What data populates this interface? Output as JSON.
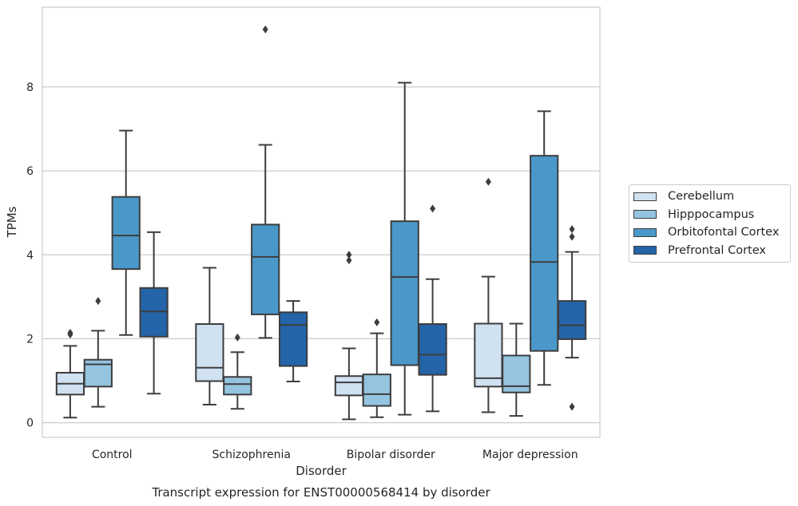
{
  "chart_data": {
    "type": "box",
    "title": "Transcript expression for ENST00000568414 by disorder",
    "xlabel": "Disorder",
    "ylabel": "TPMs",
    "ylim": [
      -0.35,
      9.9
    ],
    "yticks": [
      0,
      2,
      4,
      6,
      8
    ],
    "categories": [
      "Control",
      "Schizophrenia",
      "Bipolar disorder",
      "Major depression"
    ],
    "grid": "horizontal",
    "legend_position": "right",
    "series": [
      {
        "name": "Cerebellum",
        "color": "#d0e1f2",
        "boxes": [
          {
            "whislo": 0.12,
            "q1": 0.67,
            "med": 0.93,
            "q3": 1.19,
            "whishi": 1.83,
            "fliers": [
              2.1,
              2.14
            ]
          },
          {
            "whislo": 0.43,
            "q1": 0.99,
            "med": 1.31,
            "q3": 2.35,
            "whishi": 3.69,
            "fliers": []
          },
          {
            "whislo": 0.08,
            "q1": 0.65,
            "med": 0.96,
            "q3": 1.11,
            "whishi": 1.77,
            "fliers": [
              3.87,
              4.0
            ]
          },
          {
            "whislo": 0.25,
            "q1": 0.86,
            "med": 1.06,
            "q3": 2.36,
            "whishi": 3.48,
            "fliers": [
              5.74
            ]
          }
        ]
      },
      {
        "name": "Hipppocampus",
        "color": "#94c4df",
        "boxes": [
          {
            "whislo": 0.38,
            "q1": 0.86,
            "med": 1.39,
            "q3": 1.5,
            "whishi": 2.19,
            "fliers": [
              2.9
            ]
          },
          {
            "whislo": 0.33,
            "q1": 0.67,
            "med": 0.92,
            "q3": 1.09,
            "whishi": 1.68,
            "fliers": [
              2.03
            ]
          },
          {
            "whislo": 0.13,
            "q1": 0.4,
            "med": 0.68,
            "q3": 1.15,
            "whishi": 2.13,
            "fliers": [
              2.39
            ]
          },
          {
            "whislo": 0.16,
            "q1": 0.72,
            "med": 0.87,
            "q3": 1.6,
            "whishi": 2.36,
            "fliers": []
          }
        ]
      },
      {
        "name": "Orbitofontal Cortex",
        "color": "#4a98c9",
        "boxes": [
          {
            "whislo": 2.09,
            "q1": 3.66,
            "med": 4.46,
            "q3": 5.38,
            "whishi": 6.96,
            "fliers": []
          },
          {
            "whislo": 2.02,
            "q1": 2.58,
            "med": 3.95,
            "q3": 4.72,
            "whishi": 6.62,
            "fliers": [
              9.37
            ]
          },
          {
            "whislo": 0.19,
            "q1": 1.37,
            "med": 3.47,
            "q3": 4.8,
            "whishi": 8.1,
            "fliers": []
          },
          {
            "whislo": 0.9,
            "q1": 1.71,
            "med": 3.83,
            "q3": 6.36,
            "whishi": 7.42,
            "fliers": []
          }
        ]
      },
      {
        "name": "Prefrontal Cortex",
        "color": "#2464a8",
        "boxes": [
          {
            "whislo": 0.69,
            "q1": 2.05,
            "med": 2.65,
            "q3": 3.21,
            "whishi": 4.54,
            "fliers": []
          },
          {
            "whislo": 0.98,
            "q1": 1.35,
            "med": 2.33,
            "q3": 2.63,
            "whishi": 2.9,
            "fliers": []
          },
          {
            "whislo": 0.27,
            "q1": 1.14,
            "med": 1.62,
            "q3": 2.35,
            "whishi": 3.42,
            "fliers": [
              5.1
            ]
          },
          {
            "whislo": 1.55,
            "q1": 1.99,
            "med": 2.32,
            "q3": 2.9,
            "whishi": 4.07,
            "fliers": [
              0.38,
              4.43,
              4.61
            ]
          }
        ]
      }
    ]
  }
}
